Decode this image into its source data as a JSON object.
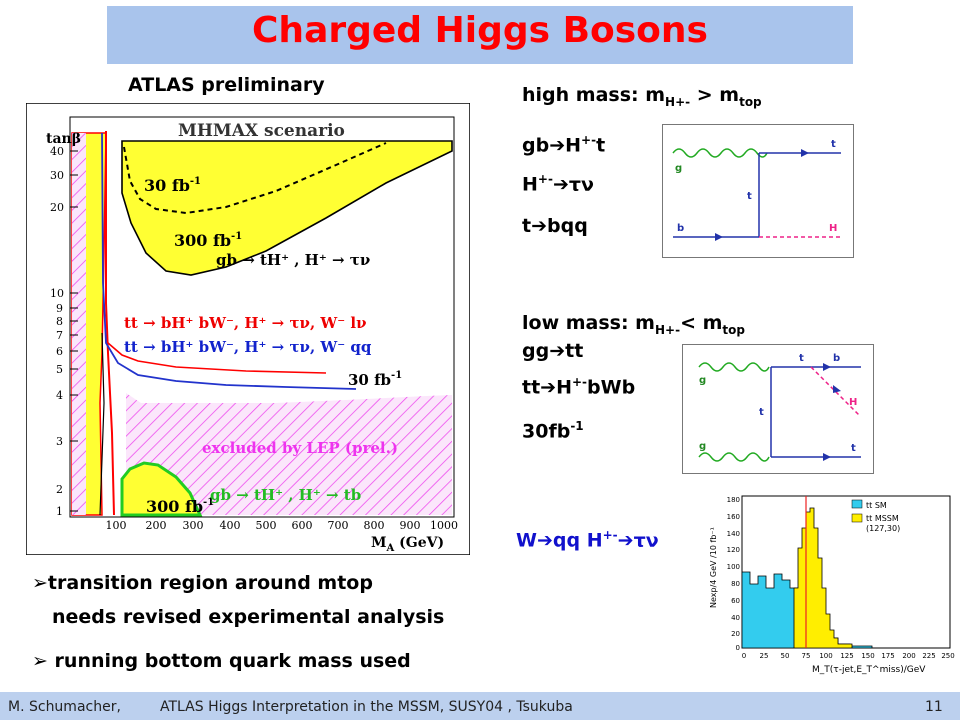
{
  "title": "Charged Higgs Bosons",
  "atlas_label": "ATLAS preliminary",
  "main_plot": {
    "scenario": "MHMAX scenario",
    "ylabel": "tanβ",
    "xlabel": "M",
    "xlabel_sub": "A",
    "xlabel_unit": " (GeV)",
    "yticks": [
      "40",
      "30",
      "20",
      "10",
      "9",
      "8",
      "7",
      "6",
      "5",
      "4",
      "3",
      "2",
      "1"
    ],
    "xticks": [
      "100",
      "200",
      "300",
      "400",
      "500",
      "600",
      "700",
      "800",
      "900",
      "1000"
    ],
    "label_30fb": "30 fb",
    "label_300fb_top": "300 fb",
    "label_300fb_bottom": "300 fb",
    "exp": "-1",
    "label_gb_tau": "gb → tH⁺ , H⁺ → τν",
    "label_tt_red": "tt → bH⁺ bW⁻, H⁺ → τν, W⁻ lν",
    "label_tt_blue": "tt → bH⁺ bW⁻, H⁺ → τν, W⁻ qq",
    "label_30fb_mid": "30 fb",
    "label_lep": "excluded by LEP (prel.)",
    "label_gb_tb": "gb → tH⁺ , H⁺ → tb"
  },
  "high_mass": {
    "head": "high mass: m",
    "head_sub": "H+-",
    "head_mid": "> m",
    "head_sub2": "top",
    "line1_a": "gb",
    "line1_b": "H",
    "line1_sup": "+-",
    "line1_c": "t",
    "line2_a": "H",
    "line2_sup": "+-",
    "line2_b": "τν",
    "line3_a": "t",
    "line3_b": "bqq"
  },
  "diagram1": {
    "g": "g",
    "t_top": "t",
    "t_mid": "t",
    "b": "b",
    "H": "H"
  },
  "low_mass": {
    "head": "low mass: m",
    "head_sub": "H+-",
    "head_mid": "< m",
    "head_sub2": "top",
    "line1_a": "gg",
    "line1_b": "tt",
    "line2_a": "tt",
    "line2_b": "H",
    "line2_sup": "+-",
    "line2_c": "bWb",
    "line3": "30fb",
    "line3_sup": "-1"
  },
  "diagram2": {
    "g_top": "g",
    "t_top": "t",
    "b": "b",
    "H": "H",
    "t_mid": "t",
    "g_bot": "g",
    "t_bot": "t"
  },
  "w_decay": {
    "a": "W",
    "b": "qq H",
    "sup": "+-",
    "c": "τν"
  },
  "hist": {
    "ylabel": "Nexp/4 GeV /10 fb⁻¹",
    "xlabel": "M_T(τ-jet,E_T^miss)/GeV",
    "legend_sm": "tt SM",
    "legend_mssm": "tt MSSM",
    "legend_mssm2": "(127,30)",
    "yticks": [
      "180",
      "160",
      "140",
      "120",
      "100",
      "80",
      "60",
      "40",
      "20",
      "0"
    ],
    "xticks": [
      "0",
      "25",
      "50",
      "75",
      "100",
      "125",
      "150",
      "175",
      "200",
      "225",
      "250"
    ],
    "colors": {
      "sm": "#33ccee",
      "mssm": "#ffee00"
    }
  },
  "bullets": {
    "b1": "transition region around mtop",
    "b1_cont": "needs revised experimental  analysis",
    "b2": "running bottom quark mass used"
  },
  "footer": {
    "author": "M. Schumacher,",
    "talk": "ATLAS Higgs Interpretation in the  MSSM, SUSY04 , Tsukuba",
    "page": "11"
  },
  "colors": {
    "title": "#ff0000",
    "yellow": "#ffff33",
    "lep_hatch": "#ee44ee",
    "w_text": "#1111cc"
  }
}
